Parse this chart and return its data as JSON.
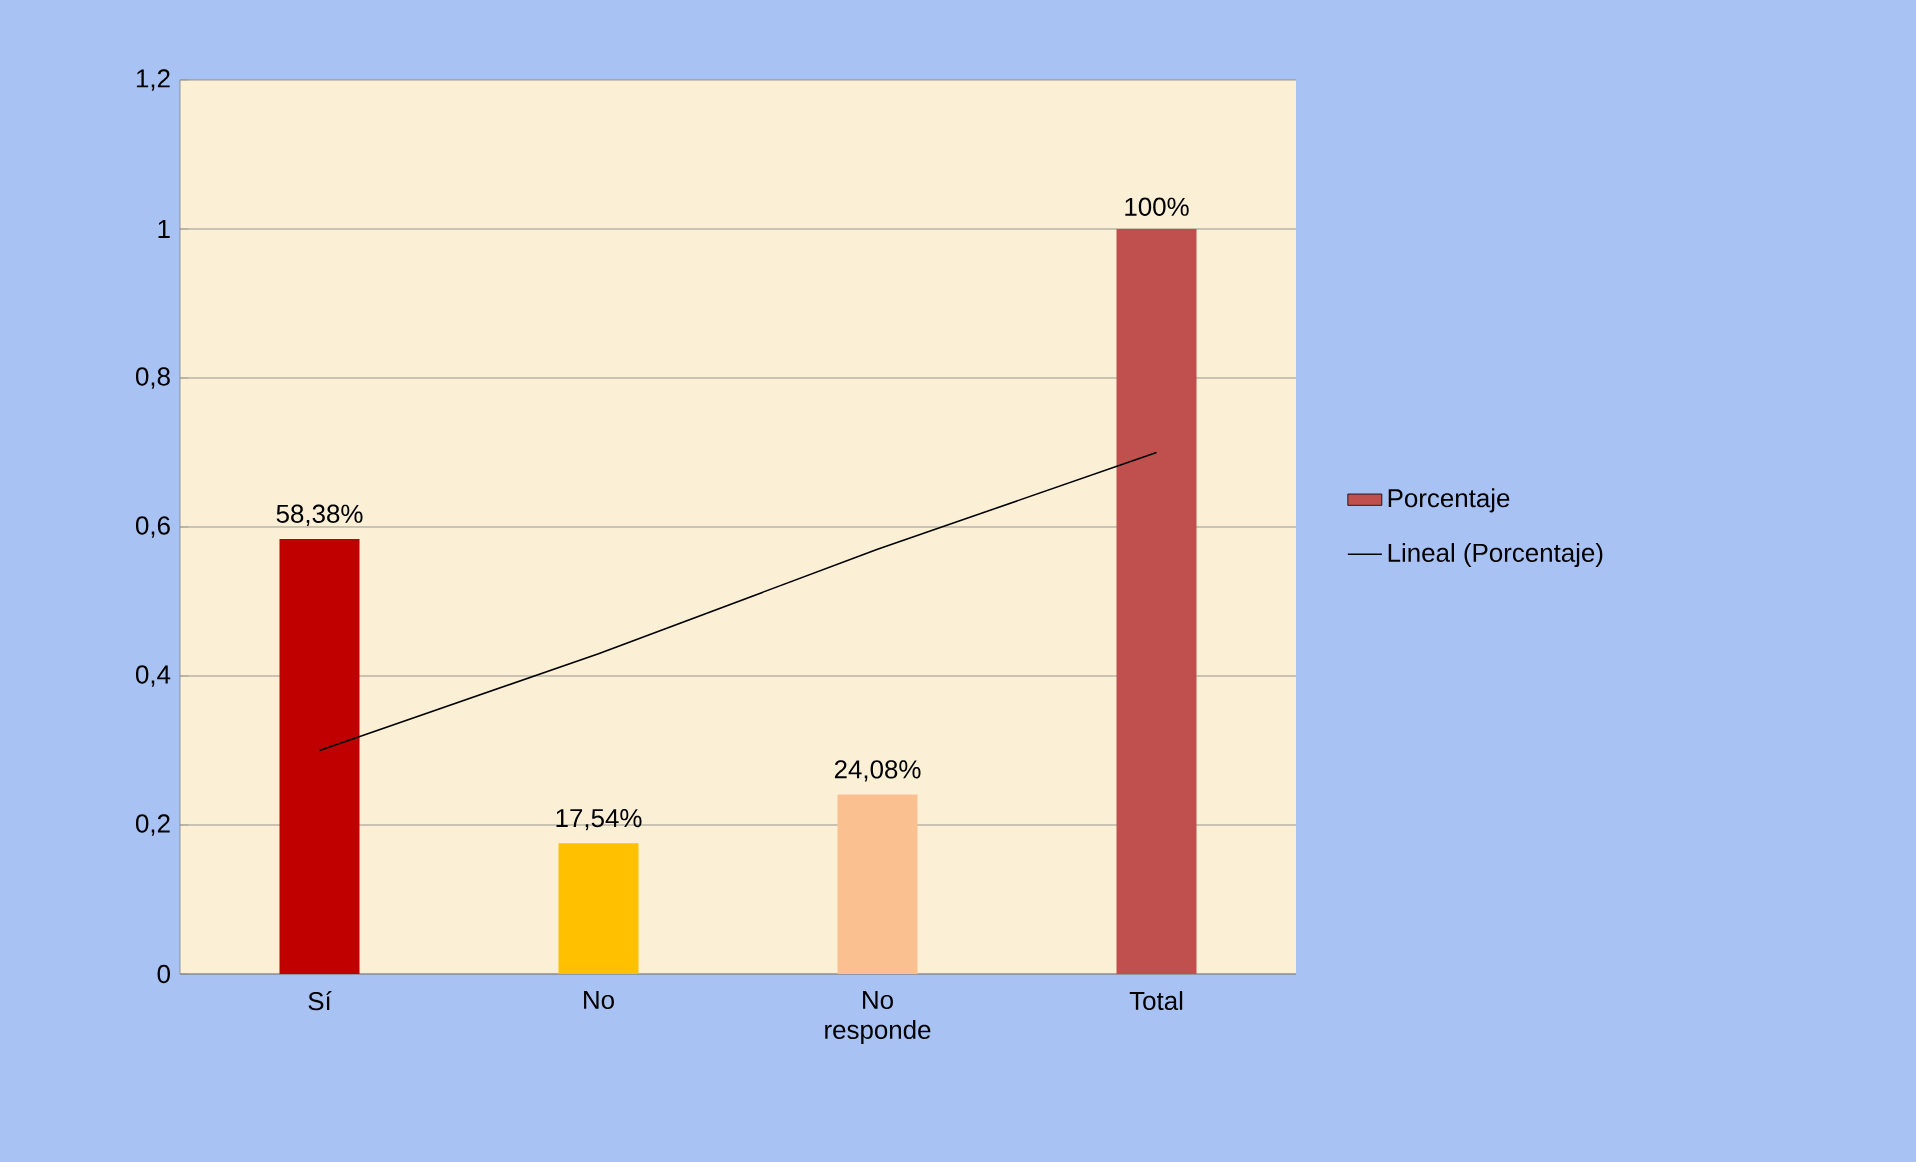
{
  "chart_data": {
    "type": "bar",
    "categories": [
      "Sí",
      "No",
      "No responde",
      "Total"
    ],
    "series": [
      {
        "name": "Porcentaje",
        "color": "#c0504d",
        "colors": [
          "#c00000",
          "#ffc000",
          "#fac090",
          "#c0504d"
        ],
        "values": [
          0.5838,
          0.1754,
          0.2408,
          1.0
        ],
        "value_labels": [
          "58,38%",
          "17,54%",
          "24,08%",
          "100%"
        ]
      },
      {
        "name": "Lineal (Porcentaje)",
        "type": "line",
        "color": "#000000",
        "values": [
          0.3,
          0.43,
          0.57,
          0.7
        ]
      }
    ],
    "ylim": [
      0,
      1.2
    ],
    "yticks": [
      0,
      {
        "value": 0.2,
        "label": "0,2"
      },
      {
        "value": 0.4,
        "label": "0,4"
      },
      {
        "value": 0.6,
        "label": "0,6"
      },
      {
        "value": 0.8,
        "label": "0,8"
      },
      1,
      {
        "value": 1.2,
        "label": "1,2"
      }
    ],
    "grid": "y",
    "legend": "right",
    "marker": "none",
    "line_style": "solid"
  }
}
